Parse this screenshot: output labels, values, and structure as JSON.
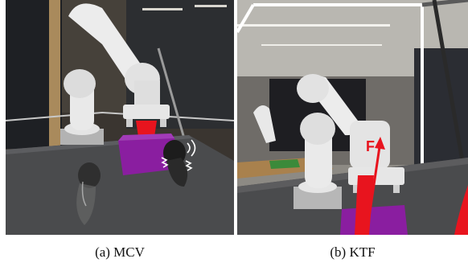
{
  "figure": {
    "panels": [
      {
        "caption": "(a) MCV"
      },
      {
        "caption": "(b) KTF",
        "overlay_label": "F"
      }
    ]
  },
  "colors": {
    "force_arrow": "#e8141e",
    "object_block": "#8a1ea0",
    "robot_white": "#e9e9e9",
    "table_dark": "#4a4b4d"
  }
}
